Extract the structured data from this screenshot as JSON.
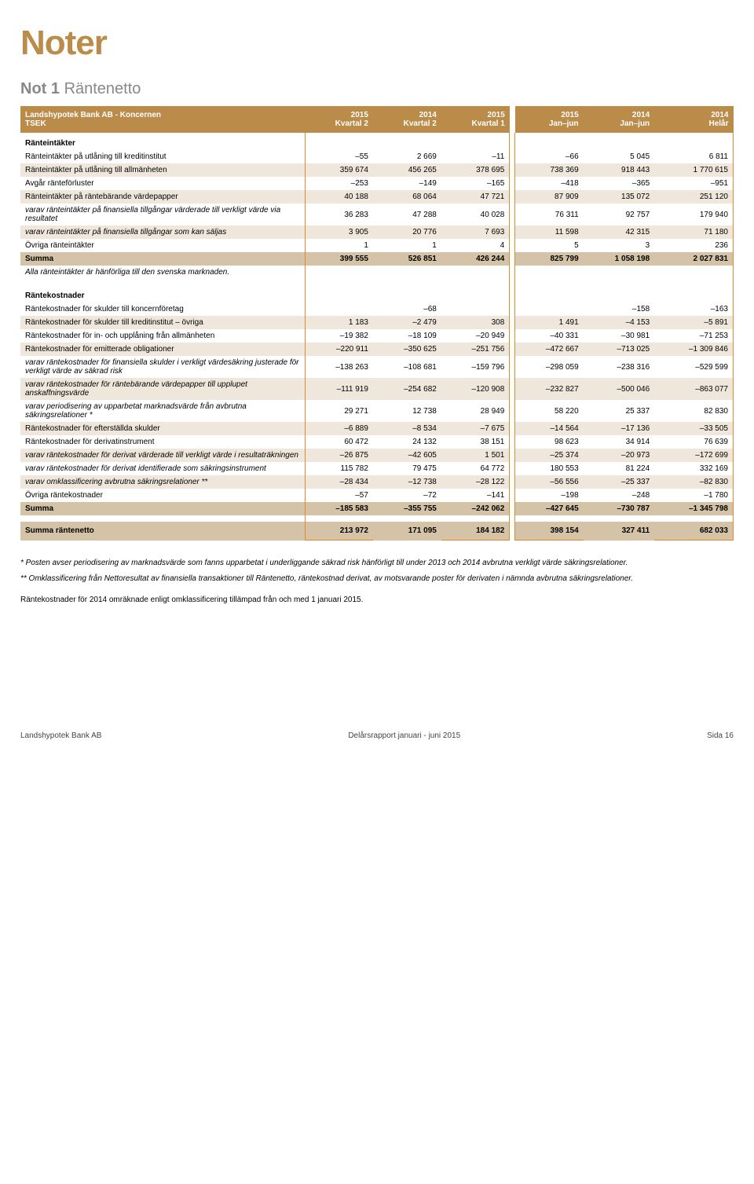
{
  "page": {
    "title": "Noter",
    "note_label": "Not 1 ",
    "note_title": "Räntenetto"
  },
  "header": {
    "lbl1": "Landshypotek Bank AB - Koncernen",
    "lbl2": "TSEK",
    "c1": "2015\nKvartal 2",
    "c2": "2014\nKvartal 2",
    "c3": "2015\nKvartal 1",
    "c4": "2015\nJan–jun",
    "c5": "2014\nJan–jun",
    "c6": "2014\nHelår"
  },
  "rows": [
    {
      "type": "section",
      "lbl": "Ränteintäkter"
    },
    {
      "lbl": "Ränteintäkter på utlåning till kreditinstitut",
      "v": [
        "–55",
        "2 669",
        "–11",
        "–66",
        "5 045",
        "6 811"
      ]
    },
    {
      "lbl": "Ränteintäkter på utlåning till allmänheten",
      "v": [
        "359 674",
        "456 265",
        "378 695",
        "738 369",
        "918 443",
        "1 770 615"
      ],
      "stripe": true
    },
    {
      "lbl": "Avgår ränteförluster",
      "v": [
        "–253",
        "–149",
        "–165",
        "–418",
        "–365",
        "–951"
      ]
    },
    {
      "lbl": "Ränteintäkter på räntebärande värdepapper",
      "v": [
        "40 188",
        "68 064",
        "47 721",
        "87 909",
        "135 072",
        "251 120"
      ],
      "stripe": true
    },
    {
      "type": "italic",
      "lbl": "varav ränteintäkter på finansiella tillgångar värderade till verkligt värde via resultatet",
      "v": [
        "36 283",
        "47 288",
        "40 028",
        "76 311",
        "92 757",
        "179 940"
      ]
    },
    {
      "type": "italic",
      "lbl": "varav ränteintäkter på finansiella tillgångar som kan säljas",
      "v": [
        "3 905",
        "20 776",
        "7 693",
        "11 598",
        "42 315",
        "71 180"
      ],
      "stripe": true
    },
    {
      "lbl": "Övriga ränteintäkter",
      "v": [
        "1",
        "1",
        "4",
        "5",
        "3",
        "236"
      ]
    },
    {
      "type": "sum",
      "lbl": "Summa",
      "v": [
        "399 555",
        "526 851",
        "426 244",
        "825 799",
        "1 058 198",
        "2 027 831"
      ]
    },
    {
      "type": "italic",
      "lbl": "Alla ränteintäkter är hänförliga till den svenska marknaden.",
      "v": [
        "",
        "",
        "",
        "",
        "",
        ""
      ]
    },
    {
      "type": "gap",
      "v": [
        "",
        "",
        "",
        "",
        "",
        ""
      ]
    },
    {
      "type": "section",
      "lbl": "Räntekostnader"
    },
    {
      "lbl": "Räntekostnader för skulder till koncernföretag",
      "v": [
        "",
        "–68",
        "",
        "",
        "–158",
        "–163"
      ]
    },
    {
      "lbl": "Räntekostnader för skulder till kreditinstitut – övriga",
      "v": [
        "1 183",
        "–2 479",
        "308",
        "1 491",
        "–4 153",
        "–5 891"
      ],
      "stripe": true
    },
    {
      "lbl": "Räntekostnader för in- och upplåning från allmänheten",
      "v": [
        "–19 382",
        "–18 109",
        "–20 949",
        "–40 331",
        "–30 981",
        "–71 253"
      ]
    },
    {
      "lbl": "Räntekostnader för emitterade obligationer",
      "v": [
        "–220 911",
        "–350 625",
        "–251 756",
        "–472 667",
        "–713 025",
        "–1 309 846"
      ],
      "stripe": true
    },
    {
      "type": "italic",
      "lbl": "varav räntekostnader för finansiella skulder i verkligt värdesäkring justerade för verkligt värde av säkrad risk",
      "v": [
        "–138 263",
        "–108 681",
        "–159 796",
        "–298 059",
        "–238 316",
        "–529 599"
      ]
    },
    {
      "type": "italic",
      "lbl": "varav räntekostnader för räntebärande värdepapper till upplupet anskaffningsvärde",
      "v": [
        "–111 919",
        "–254 682",
        "–120 908",
        "–232 827",
        "–500 046",
        "–863 077"
      ],
      "stripe": true
    },
    {
      "type": "italic",
      "lbl": "varav periodisering av upparbetat marknadsvärde från avbrutna säkringsrelationer *",
      "v": [
        "29 271",
        "12 738",
        "28 949",
        "58 220",
        "25 337",
        "82 830"
      ]
    },
    {
      "lbl": "Räntekostnader för efterställda skulder",
      "v": [
        "–6 889",
        "–8 534",
        "–7 675",
        "–14 564",
        "–17 136",
        "–33 505"
      ],
      "stripe": true
    },
    {
      "lbl": "Räntekostnader för derivatinstrument",
      "v": [
        "60 472",
        "24 132",
        "38 151",
        "98 623",
        "34 914",
        "76 639"
      ]
    },
    {
      "type": "italic",
      "lbl": "varav räntekostnader för derivat värderade till verkligt värde i resultaträkningen",
      "v": [
        "–26 875",
        "–42 605",
        "1 501",
        "–25 374",
        "–20 973",
        "–172 699"
      ],
      "stripe": true
    },
    {
      "type": "italic",
      "lbl": "varav räntekostnader för derivat identifierade som säkringsinstrument",
      "v": [
        "115 782",
        "79 475",
        "64 772",
        "180 553",
        "81 224",
        "332 169"
      ]
    },
    {
      "type": "italic",
      "lbl": "varav omklassificering avbrutna säkringsrelationer **",
      "v": [
        "–28 434",
        "–12 738",
        "–28 122",
        "–56 556",
        "–25 337",
        "–82 830"
      ],
      "stripe": true
    },
    {
      "lbl": "Övriga räntekostnader",
      "v": [
        "–57",
        "–72",
        "–141",
        "–198",
        "–248",
        "–1 780"
      ]
    },
    {
      "type": "sum",
      "lbl": "Summa",
      "v": [
        "–185 583",
        "–355 755",
        "–242 062",
        "–427 645",
        "–730 787",
        "–1 345 798"
      ]
    },
    {
      "type": "gap",
      "v": [
        "",
        "",
        "",
        "",
        "",
        ""
      ]
    },
    {
      "type": "total",
      "lbl": "Summa räntenetto",
      "v": [
        "213 972",
        "171 095",
        "184 182",
        "398 154",
        "327 411",
        "682 033"
      ],
      "last": true
    }
  ],
  "footnotes": {
    "n1": "*  Posten avser periodisering av marknadsvärde som fanns upparbetat i underliggande säkrad risk hänförligt till under 2013 och 2014 avbrutna verkligt värde säkringsrelationer.",
    "n2": "** Omklassificering från Nettoresultat av finansiella transaktioner till Räntenetto, räntekostnad derivat, av motsvarande poster för derivaten i nämnda avbrutna säkringsrelationer.",
    "n3": "Räntekostnader för 2014 omräknade enligt omklassificering tillämpad från och med 1 januari 2015."
  },
  "footer": {
    "left": "Landshypotek Bank AB",
    "center": "Delårsrapport januari - juni 2015",
    "right": "Sida 16"
  },
  "colors": {
    "brand": "#bb8b4a",
    "stripe": "#efe7db",
    "sum": "#d4c3a6",
    "border": "#e08a2e"
  }
}
